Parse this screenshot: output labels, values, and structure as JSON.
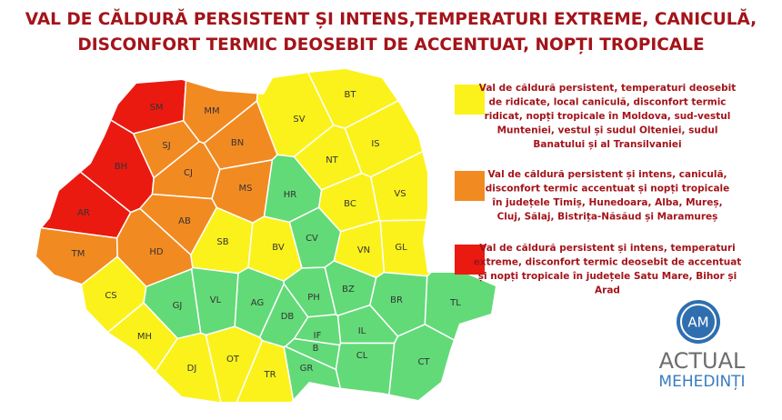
{
  "title": [
    "VAL DE CĂLDURĂ PERSISTENT ȘI INTENS,TEMPERATURI EXTREME, CANICULĂ,",
    "DISCONFORT TERMIC DEOSEBIT DE ACCENTUAT, NOPȚI TROPICALE"
  ],
  "zones": [
    {
      "color": "#ea1a10",
      "counties": [
        "SM",
        "BH",
        "AR"
      ],
      "legend": [
        "Val de căldură persistent și intens, temperaturi",
        "extreme, disconfort termic deosebit de accentuat",
        "și nopți tropicale în județele Satu Mare, Bihor și",
        "Arad"
      ]
    },
    {
      "color": "#f28a22",
      "counties": [
        "MM",
        "SJ",
        "BN",
        "CJ",
        "MS",
        "AB",
        "HD",
        "TM"
      ],
      "legend": [
        "Val de căldură persistent și intens, caniculă,",
        "disconfort termic accentuat și nopți tropicale",
        "în județele Timiș, Hunedoara, Alba, Mureș,",
        "Cluj, Sălaj, Bistrița-Năsăud și Maramureș"
      ]
    },
    {
      "color": "#fbf21c",
      "counties": [
        "BT",
        "SV",
        "IS",
        "NT",
        "VS",
        "BC",
        "VN",
        "GL",
        "SB",
        "BV",
        "CS",
        "MH",
        "DJ",
        "OT",
        "TR"
      ],
      "legend": [
        "Val de căldură persistent, temperaturi deosebit",
        "de ridicate, local caniculă, disconfort termic",
        "ridicat, nopți tropicale în Moldova, sud-vestul",
        "Munteniei, vestul și sudul Olteniei, sudul",
        "Banatului și al Transilvaniei"
      ]
    },
    {
      "color": "#62da78",
      "counties": [
        "HR",
        "CV",
        "GJ",
        "VL",
        "AG",
        "PH",
        "BZ",
        "BR",
        "TL",
        "DB",
        "IF",
        "B",
        "IL",
        "CL",
        "CT",
        "GR"
      ]
    }
  ],
  "logo": {
    "badge": "AM",
    "name": "ACTUAL",
    "place": "MEHEDINȚI"
  }
}
